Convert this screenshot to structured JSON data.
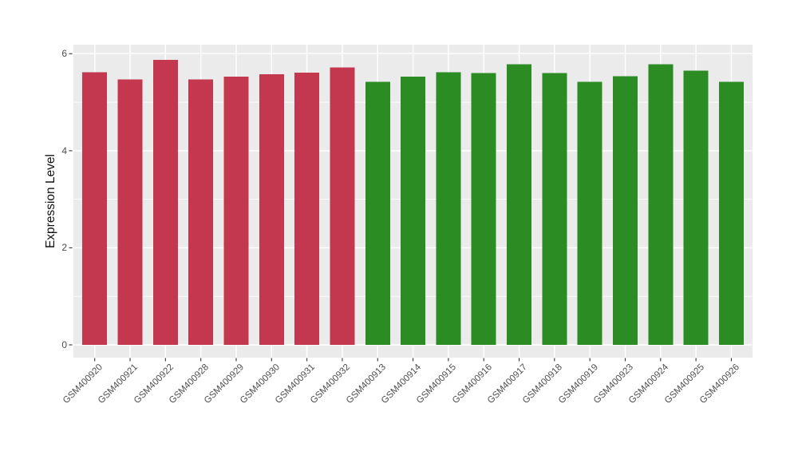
{
  "chart_data": {
    "type": "bar",
    "title": "",
    "xlabel": "",
    "ylabel": "Expression Level",
    "yticks": [
      0,
      2,
      4,
      6
    ],
    "ylim": [
      0,
      6.2
    ],
    "grid": true,
    "legend_position": "none",
    "panel_background": "#EBEBEB",
    "grid_color": "#FFFFFF",
    "axis_text_color": "#4D4D4D",
    "tick_mark_color": "#333333",
    "series": [
      {
        "name": "red-group",
        "color": "#C4384F",
        "categories": [
          "GSM400920",
          "GSM400921",
          "GSM400922",
          "GSM400928",
          "GSM400929",
          "GSM400930",
          "GSM400931",
          "GSM400932"
        ],
        "values": [
          5.62,
          5.47,
          5.87,
          5.47,
          5.53,
          5.58,
          5.61,
          5.72
        ]
      },
      {
        "name": "green-group",
        "color": "#2B8C23",
        "categories": [
          "GSM400913",
          "GSM400914",
          "GSM400915",
          "GSM400916",
          "GSM400917",
          "GSM400918",
          "GSM400919",
          "GSM400923",
          "GSM400924",
          "GSM400925",
          "GSM400926"
        ],
        "values": [
          5.42,
          5.53,
          5.62,
          5.6,
          5.78,
          5.6,
          5.42,
          5.54,
          5.78,
          5.65,
          5.42
        ]
      }
    ]
  }
}
